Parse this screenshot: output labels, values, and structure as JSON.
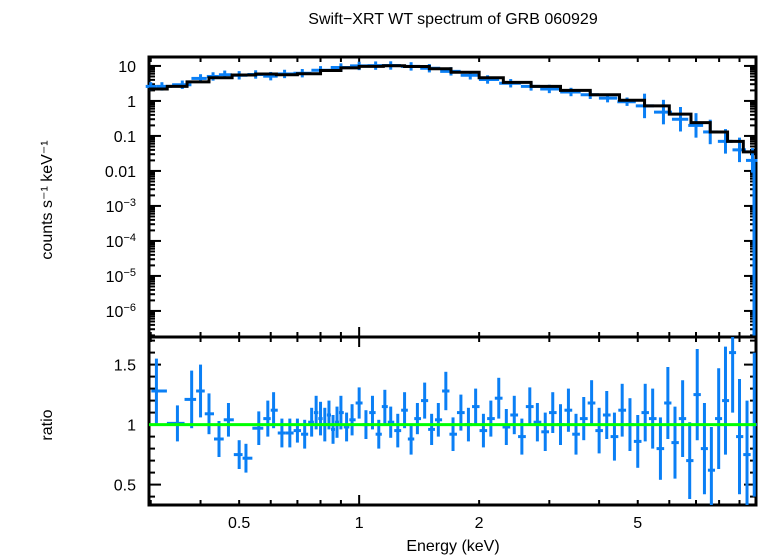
{
  "chart_data": [
    {
      "panel": "spectrum",
      "type": "scatter",
      "title": "Swift−XRT WT spectrum of GRB 060929",
      "xlabel": "Energy (keV)",
      "ylabel": "counts s⁻¹ keV⁻¹",
      "xscale": "log",
      "yscale": "log",
      "xlim": [
        0.297,
        9.9
      ],
      "ylim": [
        1.8e-07,
        18
      ],
      "x_ticks": [
        {
          "v": 0.5,
          "label": "0.5"
        },
        {
          "v": 1,
          "label": "1"
        },
        {
          "v": 2,
          "label": "2"
        },
        {
          "v": 5,
          "label": "5"
        }
      ],
      "y_ticks": [
        {
          "v": 10,
          "label": "10"
        },
        {
          "v": 1,
          "label": "1"
        },
        {
          "v": 0.1,
          "label": "0.1"
        },
        {
          "v": 0.01,
          "label": "0.01"
        },
        {
          "v": 0.001,
          "label": "10",
          "exp": "−3"
        },
        {
          "v": 0.0001,
          "label": "10",
          "exp": "−4"
        },
        {
          "v": 1e-05,
          "label": "10",
          "exp": "−5"
        },
        {
          "v": 1e-06,
          "label": "10",
          "exp": "−6"
        }
      ],
      "series": [
        {
          "name": "data",
          "color": "#0a7ff5",
          "style": "errorbar",
          "points": [
            {
              "x": 0.3,
              "y": 2.6
            },
            {
              "x": 0.32,
              "y": 2.6
            },
            {
              "x": 0.36,
              "y": 2.9
            },
            {
              "x": 0.4,
              "y": 4.4
            },
            {
              "x": 0.43,
              "y": 5.0
            },
            {
              "x": 0.46,
              "y": 5.6
            },
            {
              "x": 0.5,
              "y": 5.4
            },
            {
              "x": 0.55,
              "y": 5.7
            },
            {
              "x": 0.6,
              "y": 5.1
            },
            {
              "x": 0.65,
              "y": 5.9
            },
            {
              "x": 0.72,
              "y": 6.2
            },
            {
              "x": 0.8,
              "y": 7.5
            },
            {
              "x": 0.9,
              "y": 9.0
            },
            {
              "x": 1.0,
              "y": 10.0
            },
            {
              "x": 1.1,
              "y": 10.2
            },
            {
              "x": 1.2,
              "y": 10.3
            },
            {
              "x": 1.35,
              "y": 9.7
            },
            {
              "x": 1.5,
              "y": 8.6
            },
            {
              "x": 1.7,
              "y": 7.0
            },
            {
              "x": 1.9,
              "y": 5.4
            },
            {
              "x": 2.1,
              "y": 4.1
            },
            {
              "x": 2.4,
              "y": 3.2
            },
            {
              "x": 2.7,
              "y": 2.6
            },
            {
              "x": 3.0,
              "y": 2.2
            },
            {
              "x": 3.4,
              "y": 1.8
            },
            {
              "x": 3.8,
              "y": 1.5
            },
            {
              "x": 4.2,
              "y": 1.2
            },
            {
              "x": 4.7,
              "y": 0.95
            },
            {
              "x": 5.2,
              "y": 0.72
            },
            {
              "x": 5.8,
              "y": 0.48
            },
            {
              "x": 6.4,
              "y": 0.3
            },
            {
              "x": 7.0,
              "y": 0.2
            },
            {
              "x": 7.6,
              "y": 0.13
            },
            {
              "x": 8.3,
              "y": 0.07
            },
            {
              "x": 9.0,
              "y": 0.04
            },
            {
              "x": 9.7,
              "y": 0.02
            }
          ]
        },
        {
          "name": "model",
          "color": "#000000",
          "style": "step",
          "points": [
            {
              "x": 0.297,
              "y": 2.2
            },
            {
              "x": 0.33,
              "y": 2.6
            },
            {
              "x": 0.37,
              "y": 3.5
            },
            {
              "x": 0.42,
              "y": 4.6
            },
            {
              "x": 0.48,
              "y": 5.5
            },
            {
              "x": 0.55,
              "y": 5.9
            },
            {
              "x": 0.62,
              "y": 5.6
            },
            {
              "x": 0.7,
              "y": 6.0
            },
            {
              "x": 0.8,
              "y": 7.4
            },
            {
              "x": 0.9,
              "y": 8.8
            },
            {
              "x": 1.0,
              "y": 9.7
            },
            {
              "x": 1.15,
              "y": 10.1
            },
            {
              "x": 1.3,
              "y": 9.6
            },
            {
              "x": 1.5,
              "y": 8.3
            },
            {
              "x": 1.7,
              "y": 6.6
            },
            {
              "x": 2.0,
              "y": 4.6
            },
            {
              "x": 2.3,
              "y": 3.4
            },
            {
              "x": 2.7,
              "y": 2.6
            },
            {
              "x": 3.2,
              "y": 2.0
            },
            {
              "x": 3.8,
              "y": 1.5
            },
            {
              "x": 4.5,
              "y": 1.05
            },
            {
              "x": 5.2,
              "y": 0.72
            },
            {
              "x": 6.0,
              "y": 0.42
            },
            {
              "x": 6.8,
              "y": 0.24
            },
            {
              "x": 7.6,
              "y": 0.13
            },
            {
              "x": 8.4,
              "y": 0.07
            },
            {
              "x": 9.2,
              "y": 0.035
            },
            {
              "x": 9.9,
              "y": 0.022
            }
          ]
        }
      ]
    },
    {
      "panel": "ratio",
      "type": "scatter",
      "xlabel": "Energy (keV)",
      "ylabel": "ratio",
      "xscale": "log",
      "yscale": "linear",
      "xlim": [
        0.297,
        9.9
      ],
      "ylim": [
        0.33,
        1.73
      ],
      "x_ticks": [
        {
          "v": 0.5,
          "label": "0.5"
        },
        {
          "v": 1,
          "label": "1"
        },
        {
          "v": 2,
          "label": "2"
        },
        {
          "v": 5,
          "label": "5"
        }
      ],
      "y_ticks": [
        {
          "v": 1.5,
          "label": "1.5"
        },
        {
          "v": 1,
          "label": "1"
        },
        {
          "v": 0.5,
          "label": "0.5"
        }
      ],
      "reference_line": {
        "y": 1,
        "color": "#00ff00"
      },
      "series": [
        {
          "name": "ratio",
          "color": "#0a7ff5",
          "style": "errorbar",
          "points": [
            {
              "x": 0.31,
              "y": 1.28,
              "err": 0.27
            },
            {
              "x": 0.35,
              "y": 1.01,
              "err": 0.15
            },
            {
              "x": 0.38,
              "y": 1.21,
              "err": 0.24
            },
            {
              "x": 0.4,
              "y": 1.28,
              "err": 0.22
            },
            {
              "x": 0.42,
              "y": 1.09,
              "err": 0.17
            },
            {
              "x": 0.445,
              "y": 0.88,
              "err": 0.15
            },
            {
              "x": 0.47,
              "y": 1.04,
              "err": 0.14
            },
            {
              "x": 0.5,
              "y": 0.75,
              "err": 0.12
            },
            {
              "x": 0.52,
              "y": 0.72,
              "err": 0.12
            },
            {
              "x": 0.56,
              "y": 0.97,
              "err": 0.14
            },
            {
              "x": 0.59,
              "y": 1.05,
              "err": 0.15
            },
            {
              "x": 0.61,
              "y": 1.12,
              "err": 0.15
            },
            {
              "x": 0.64,
              "y": 0.93,
              "err": 0.12
            },
            {
              "x": 0.67,
              "y": 0.93,
              "err": 0.12
            },
            {
              "x": 0.7,
              "y": 0.95,
              "err": 0.1
            },
            {
              "x": 0.73,
              "y": 0.92,
              "err": 0.12
            },
            {
              "x": 0.76,
              "y": 1.02,
              "err": 0.12
            },
            {
              "x": 0.78,
              "y": 1.1,
              "err": 0.14
            },
            {
              "x": 0.8,
              "y": 1.05,
              "err": 0.14
            },
            {
              "x": 0.82,
              "y": 1.0,
              "err": 0.14
            },
            {
              "x": 0.84,
              "y": 1.08,
              "err": 0.12
            },
            {
              "x": 0.86,
              "y": 0.96,
              "err": 0.12
            },
            {
              "x": 0.88,
              "y": 1.02,
              "err": 0.13
            },
            {
              "x": 0.9,
              "y": 1.1,
              "err": 0.14
            },
            {
              "x": 0.93,
              "y": 0.98,
              "err": 0.12
            },
            {
              "x": 0.96,
              "y": 1.04,
              "err": 0.13
            },
            {
              "x": 1.0,
              "y": 1.18,
              "err": 0.13
            },
            {
              "x": 1.04,
              "y": 1.0,
              "err": 0.12
            },
            {
              "x": 1.08,
              "y": 1.1,
              "err": 0.14
            },
            {
              "x": 1.12,
              "y": 0.92,
              "err": 0.12
            },
            {
              "x": 1.16,
              "y": 1.15,
              "err": 0.14
            },
            {
              "x": 1.2,
              "y": 1.02,
              "err": 0.13
            },
            {
              "x": 1.25,
              "y": 0.95,
              "err": 0.14
            },
            {
              "x": 1.3,
              "y": 1.12,
              "err": 0.15
            },
            {
              "x": 1.35,
              "y": 0.88,
              "err": 0.13
            },
            {
              "x": 1.4,
              "y": 1.05,
              "err": 0.13
            },
            {
              "x": 1.46,
              "y": 1.2,
              "err": 0.15
            },
            {
              "x": 1.52,
              "y": 0.96,
              "err": 0.13
            },
            {
              "x": 1.58,
              "y": 1.04,
              "err": 0.14
            },
            {
              "x": 1.65,
              "y": 1.28,
              "err": 0.16
            },
            {
              "x": 1.72,
              "y": 0.92,
              "err": 0.14
            },
            {
              "x": 1.8,
              "y": 1.1,
              "err": 0.15
            },
            {
              "x": 1.88,
              "y": 1.0,
              "err": 0.14
            },
            {
              "x": 1.96,
              "y": 1.15,
              "err": 0.15
            },
            {
              "x": 2.05,
              "y": 0.95,
              "err": 0.14
            },
            {
              "x": 2.14,
              "y": 1.05,
              "err": 0.15
            },
            {
              "x": 2.24,
              "y": 1.22,
              "err": 0.17
            },
            {
              "x": 2.34,
              "y": 0.98,
              "err": 0.15
            },
            {
              "x": 2.45,
              "y": 1.08,
              "err": 0.16
            },
            {
              "x": 2.56,
              "y": 0.9,
              "err": 0.15
            },
            {
              "x": 2.68,
              "y": 1.15,
              "err": 0.16
            },
            {
              "x": 2.8,
              "y": 1.02,
              "err": 0.16
            },
            {
              "x": 2.93,
              "y": 0.94,
              "err": 0.16
            },
            {
              "x": 3.06,
              "y": 1.1,
              "err": 0.17
            },
            {
              "x": 3.2,
              "y": 1.0,
              "err": 0.17
            },
            {
              "x": 3.35,
              "y": 1.12,
              "err": 0.18
            },
            {
              "x": 3.5,
              "y": 0.92,
              "err": 0.17
            },
            {
              "x": 3.66,
              "y": 1.05,
              "err": 0.18
            },
            {
              "x": 3.83,
              "y": 1.18,
              "err": 0.19
            },
            {
              "x": 4.0,
              "y": 0.95,
              "err": 0.19
            },
            {
              "x": 4.18,
              "y": 1.08,
              "err": 0.2
            },
            {
              "x": 4.37,
              "y": 0.9,
              "err": 0.2
            },
            {
              "x": 4.57,
              "y": 1.12,
              "err": 0.22
            },
            {
              "x": 4.78,
              "y": 1.0,
              "err": 0.22
            },
            {
              "x": 5.0,
              "y": 0.86,
              "err": 0.22
            },
            {
              "x": 5.22,
              "y": 1.1,
              "err": 0.24
            },
            {
              "x": 5.45,
              "y": 1.05,
              "err": 0.25
            },
            {
              "x": 5.7,
              "y": 0.8,
              "err": 0.26
            },
            {
              "x": 5.95,
              "y": 1.18,
              "err": 0.3
            },
            {
              "x": 6.2,
              "y": 0.85,
              "err": 0.3
            },
            {
              "x": 6.48,
              "y": 1.05,
              "err": 0.32
            },
            {
              "x": 6.75,
              "y": 0.7,
              "err": 0.32
            },
            {
              "x": 7.05,
              "y": 1.25,
              "err": 0.38
            },
            {
              "x": 7.35,
              "y": 0.8,
              "err": 0.38
            },
            {
              "x": 7.65,
              "y": 0.62,
              "err": 0.36
            },
            {
              "x": 7.98,
              "y": 1.05,
              "err": 0.42
            },
            {
              "x": 8.3,
              "y": 1.2,
              "err": 0.45
            },
            {
              "x": 8.65,
              "y": 1.6,
              "err": 0.5
            },
            {
              "x": 9.0,
              "y": 0.9,
              "err": 0.48
            },
            {
              "x": 9.4,
              "y": 0.75,
              "err": 0.45
            },
            {
              "x": 9.8,
              "y": 1.0,
              "err": 0.6
            }
          ]
        }
      ]
    }
  ]
}
